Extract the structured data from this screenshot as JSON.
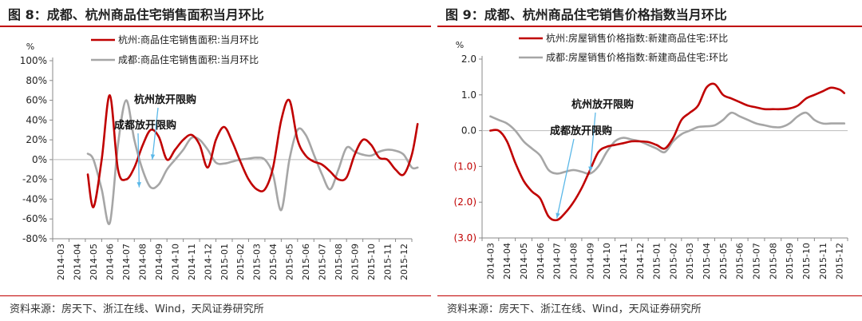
{
  "figures": [
    {
      "title": "图 8：成都、杭州商品住宅销售面积当月环比",
      "source": "资料来源：房天下、浙江在线、Wind，天风证券研究所"
    },
    {
      "title": "图 9：成都、杭州商品住宅销售价格指数当月环比",
      "source": "资料来源：房天下、浙江在线、Wind，天风证券研究所"
    }
  ],
  "chart_data": [
    {
      "type": "line",
      "unit": "%",
      "categories": [
        "2014-03",
        "2014-04",
        "2014-05",
        "2014-06",
        "2014-07",
        "2014-08",
        "2014-09",
        "2014-10",
        "2014-11",
        "2014-12",
        "2015-01",
        "2015-02",
        "2015-03",
        "2015-04",
        "2015-05",
        "2015-06",
        "2015-07",
        "2015-08",
        "2015-09",
        "2015-10",
        "2015-11",
        "2015-12"
      ],
      "ylim": [
        -80,
        100
      ],
      "yticks": [
        100,
        80,
        60,
        40,
        20,
        0,
        -20,
        -40,
        -60,
        -80
      ],
      "ytick_labels": [
        "100%",
        "80%",
        "60%",
        "40%",
        "20%",
        "0%",
        "-20%",
        "-40%",
        "-60%",
        "-80%"
      ],
      "series": [
        {
          "name": "杭州:商品住宅销售面积:当月环比",
          "color": "#c00000",
          "x": [
            2.65,
            3.0,
            3.5,
            4.0,
            4.5,
            5.0,
            5.5,
            6.0,
            6.5,
            7.0,
            7.5,
            8.0,
            8.5,
            9.0,
            9.5,
            10.0,
            10.5,
            11.0,
            11.5,
            12.0,
            12.5,
            13.0,
            13.5,
            14.0,
            14.5,
            15.0,
            15.5,
            16.0,
            16.5,
            17.0,
            17.5,
            18.0,
            18.5,
            19.0,
            19.5,
            20.0,
            20.5,
            21.0,
            21.5,
            22.0,
            22.5,
            22.85
          ],
          "y": [
            -15,
            -48,
            0,
            65,
            -10,
            -20,
            -8,
            14,
            30,
            23,
            0,
            10,
            20,
            25,
            15,
            -8,
            20,
            33,
            18,
            -2,
            -20,
            -30,
            -30,
            -8,
            40,
            60,
            20,
            4,
            -2,
            -5,
            -12,
            -20,
            -18,
            5,
            20,
            15,
            2,
            0,
            -10,
            -15,
            5,
            36
          ]
        },
        {
          "name": "成都:商品住宅销售面积:当月环比",
          "color": "#a6a6a6",
          "x": [
            2.65,
            3.0,
            3.5,
            4.0,
            4.5,
            5.0,
            5.5,
            6.0,
            6.5,
            7.0,
            7.5,
            8.0,
            8.5,
            9.0,
            9.5,
            10.0,
            10.5,
            11.0,
            11.5,
            12.0,
            12.5,
            13.0,
            13.5,
            14.0,
            14.5,
            15.0,
            15.5,
            16.0,
            16.5,
            17.0,
            17.5,
            18.0,
            18.5,
            19.0,
            19.5,
            20.0,
            20.5,
            21.0,
            21.5,
            22.0,
            22.5,
            22.85
          ],
          "y": [
            6,
            0,
            -30,
            -64,
            15,
            60,
            20,
            -10,
            -28,
            -25,
            -10,
            0,
            10,
            22,
            20,
            10,
            -3,
            -4,
            -2,
            0,
            1,
            2,
            0,
            -15,
            -51,
            0,
            30,
            25,
            5,
            -15,
            -30,
            -10,
            12,
            8,
            5,
            4,
            8,
            10,
            9,
            5,
            -8,
            -8
          ]
        }
      ],
      "annotations": [
        {
          "text": "杭州放开限购",
          "target_x": 6.6,
          "target_y": 0
        },
        {
          "text": "成都放开限购",
          "target_x": 5.8,
          "target_y": -28
        }
      ]
    },
    {
      "type": "line",
      "unit": "%",
      "categories": [
        "2014-03",
        "2014-04",
        "2014-05",
        "2014-06",
        "2014-07",
        "2014-08",
        "2014-09",
        "2014-10",
        "2014-11",
        "2014-12",
        "2015-01",
        "2015-02",
        "2015-03",
        "2015-04",
        "2015-05",
        "2015-06",
        "2015-07",
        "2015-08",
        "2015-09",
        "2015-10",
        "2015-11",
        "2015-12"
      ],
      "ylim": [
        -3.0,
        2.0
      ],
      "yticks": [
        2.0,
        1.0,
        0.0,
        -1.0,
        -2.0,
        -3.0
      ],
      "ytick_labels": [
        "2.0",
        "1.0",
        "0.0",
        "(1.0)",
        "(2.0)",
        "(3.0)"
      ],
      "series": [
        {
          "name": "杭州:房屋销售价格指数:新建商品住宅:环比",
          "color": "#c00000",
          "x": [
            1.0,
            1.5,
            2.0,
            2.5,
            3.0,
            3.5,
            4.0,
            4.5,
            5.0,
            5.5,
            6.0,
            6.5,
            7.0,
            7.5,
            8.0,
            8.5,
            9.0,
            9.5,
            10.0,
            10.5,
            11.0,
            11.5,
            12.0,
            12.5,
            13.0,
            13.5,
            14.0,
            14.5,
            15.0,
            15.5,
            16.0,
            16.5,
            17.0,
            17.5,
            18.0,
            18.5,
            19.0,
            19.5,
            20.0,
            20.5,
            21.0,
            21.5,
            22.0,
            22.3
          ],
          "y": [
            0.0,
            0.0,
            -0.3,
            -0.9,
            -1.4,
            -1.7,
            -1.9,
            -2.4,
            -2.5,
            -2.3,
            -2.0,
            -1.6,
            -1.1,
            -0.6,
            -0.45,
            -0.4,
            -0.35,
            -0.3,
            -0.3,
            -0.32,
            -0.4,
            -0.5,
            -0.2,
            0.3,
            0.5,
            0.7,
            1.2,
            1.3,
            1.0,
            0.9,
            0.8,
            0.7,
            0.65,
            0.6,
            0.6,
            0.6,
            0.62,
            0.7,
            0.9,
            1.0,
            1.1,
            1.2,
            1.15,
            1.05
          ]
        },
        {
          "name": "成都:房屋销售价格指数:新建商品住宅:环比",
          "color": "#a6a6a6",
          "x": [
            1.0,
            1.5,
            2.0,
            2.5,
            3.0,
            3.5,
            4.0,
            4.5,
            5.0,
            5.5,
            6.0,
            6.5,
            7.0,
            7.5,
            8.0,
            8.5,
            9.0,
            9.5,
            10.0,
            10.5,
            11.0,
            11.5,
            12.0,
            12.5,
            13.0,
            13.5,
            14.0,
            14.5,
            15.0,
            15.5,
            16.0,
            16.5,
            17.0,
            17.5,
            18.0,
            18.5,
            19.0,
            19.5,
            20.0,
            20.5,
            21.0,
            21.5,
            22.0,
            22.3
          ],
          "y": [
            0.4,
            0.3,
            0.2,
            0.0,
            -0.3,
            -0.5,
            -0.7,
            -1.1,
            -1.2,
            -1.15,
            -1.1,
            -1.15,
            -1.2,
            -1.0,
            -0.6,
            -0.3,
            -0.2,
            -0.25,
            -0.3,
            -0.4,
            -0.5,
            -0.6,
            -0.3,
            -0.1,
            0.0,
            0.1,
            0.12,
            0.15,
            0.3,
            0.5,
            0.4,
            0.3,
            0.2,
            0.15,
            0.1,
            0.1,
            0.2,
            0.4,
            0.5,
            0.3,
            0.2,
            0.2,
            0.2,
            0.2
          ]
        }
      ],
      "annotations": [
        {
          "text": "杭州放开限购",
          "target_x": 7.0,
          "target_y": -1.15
        },
        {
          "text": "成都放开限购",
          "target_x": 5.0,
          "target_y": -2.45
        }
      ]
    }
  ]
}
